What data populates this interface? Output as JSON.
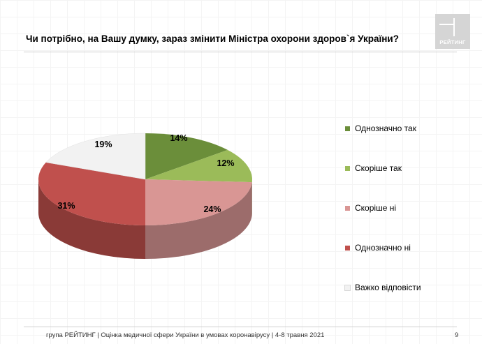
{
  "header": {
    "logo_text": "РЕЙТИНГ"
  },
  "chart_data": {
    "type": "pie",
    "title": "Чи потрібно, на Вашу думку, зараз змінити Міністра охорони здоров`я України?",
    "categories": [
      "Однозначно так",
      "Скоріше так",
      "Скоріше ні",
      "Однозначно ні",
      "Важко відповісти"
    ],
    "values": [
      14,
      12,
      24,
      31,
      19
    ],
    "labels": [
      "14%",
      "12%",
      "24%",
      "31%",
      "19%"
    ],
    "colors": [
      "#6b8e3a",
      "#9bbb59",
      "#d99694",
      "#c0504d",
      "#f2f2f2"
    ],
    "style": "3d",
    "legend_position": "right"
  },
  "footer": {
    "text": "група РЕЙТИНГ  |  Оцінка медичної сфери України в умовах коронавірусу  | 4-8 травня 2021",
    "page_number": "9"
  }
}
